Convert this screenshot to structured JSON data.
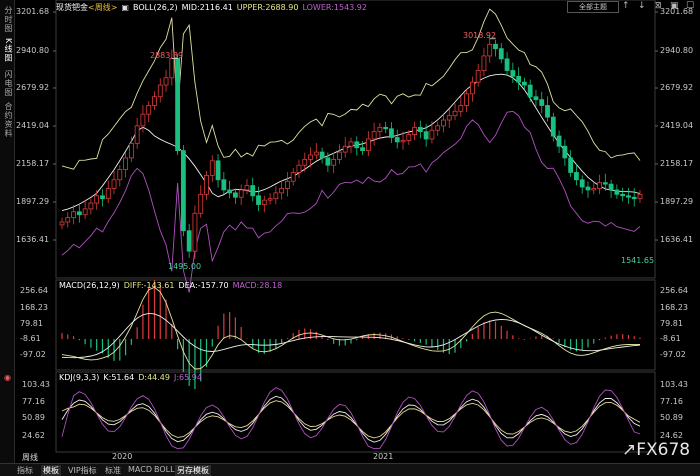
{
  "sidebar": {
    "tabs": [
      {
        "label": "分时图",
        "active": false
      },
      {
        "label": "K线图",
        "active": true
      },
      {
        "label": "闪电图",
        "active": false
      },
      {
        "label": "合约资料",
        "active": false
      }
    ]
  },
  "header": {
    "instrument": "现货钯金",
    "period": "<周线>",
    "boll": "BOLL(26,2)",
    "mid": "MID:2116.41",
    "upper": "UPPER:2688.90",
    "lower": "LOWER:1543.92"
  },
  "topright": {
    "theme_label": "全部主题"
  },
  "price_axis": {
    "ticks": [
      "3201.68",
      "2940.80",
      "2679.92",
      "2419.04",
      "2158.17",
      "1897.29",
      "1636.41"
    ]
  },
  "price_annotations": {
    "high1": "2883.89",
    "high2": "3018.92",
    "low1": "1495.00",
    "low2": "1541.65"
  },
  "macd": {
    "label": "MACD(26,12,9)",
    "diff": "DIFF:-143.61",
    "dea": "DEA:-157.70",
    "macd": "MACD:28.18",
    "ticks": [
      "256.64",
      "168.23",
      "79.81",
      "-8.61",
      "-97.02"
    ]
  },
  "kdj": {
    "label": "KDJ(9,3,3)",
    "k": "K:51.64",
    "d": "D:44.49",
    "j": "J:65.94",
    "ticks": [
      "103.43",
      "77.16",
      "50.89",
      "24.62"
    ]
  },
  "x_axis": {
    "labels": [
      "2020",
      "2021"
    ]
  },
  "bottom_bar": {
    "period_label": "周线",
    "tabs": [
      {
        "label": "指标",
        "active": false
      },
      {
        "label": "模板",
        "active": true
      },
      {
        "label": "VIP指标",
        "active": false
      },
      {
        "label": "标准",
        "active": false
      },
      {
        "label": "MACD",
        "active": false
      },
      {
        "label": "BOLL",
        "active": false
      },
      {
        "label": "另存模板",
        "active": false
      }
    ]
  },
  "logo": {
    "text": "FX678"
  },
  "colors": {
    "up": "#e03b3b",
    "down": "#19c080",
    "mid": "#f0f0f0",
    "upper": "#e0e0a0",
    "lower": "#b050c0",
    "dea": "#f0f0f0",
    "diff": "#e8e8a0",
    "k": "#f0f0f0",
    "d": "#e8d890",
    "j": "#b050c0"
  }
}
